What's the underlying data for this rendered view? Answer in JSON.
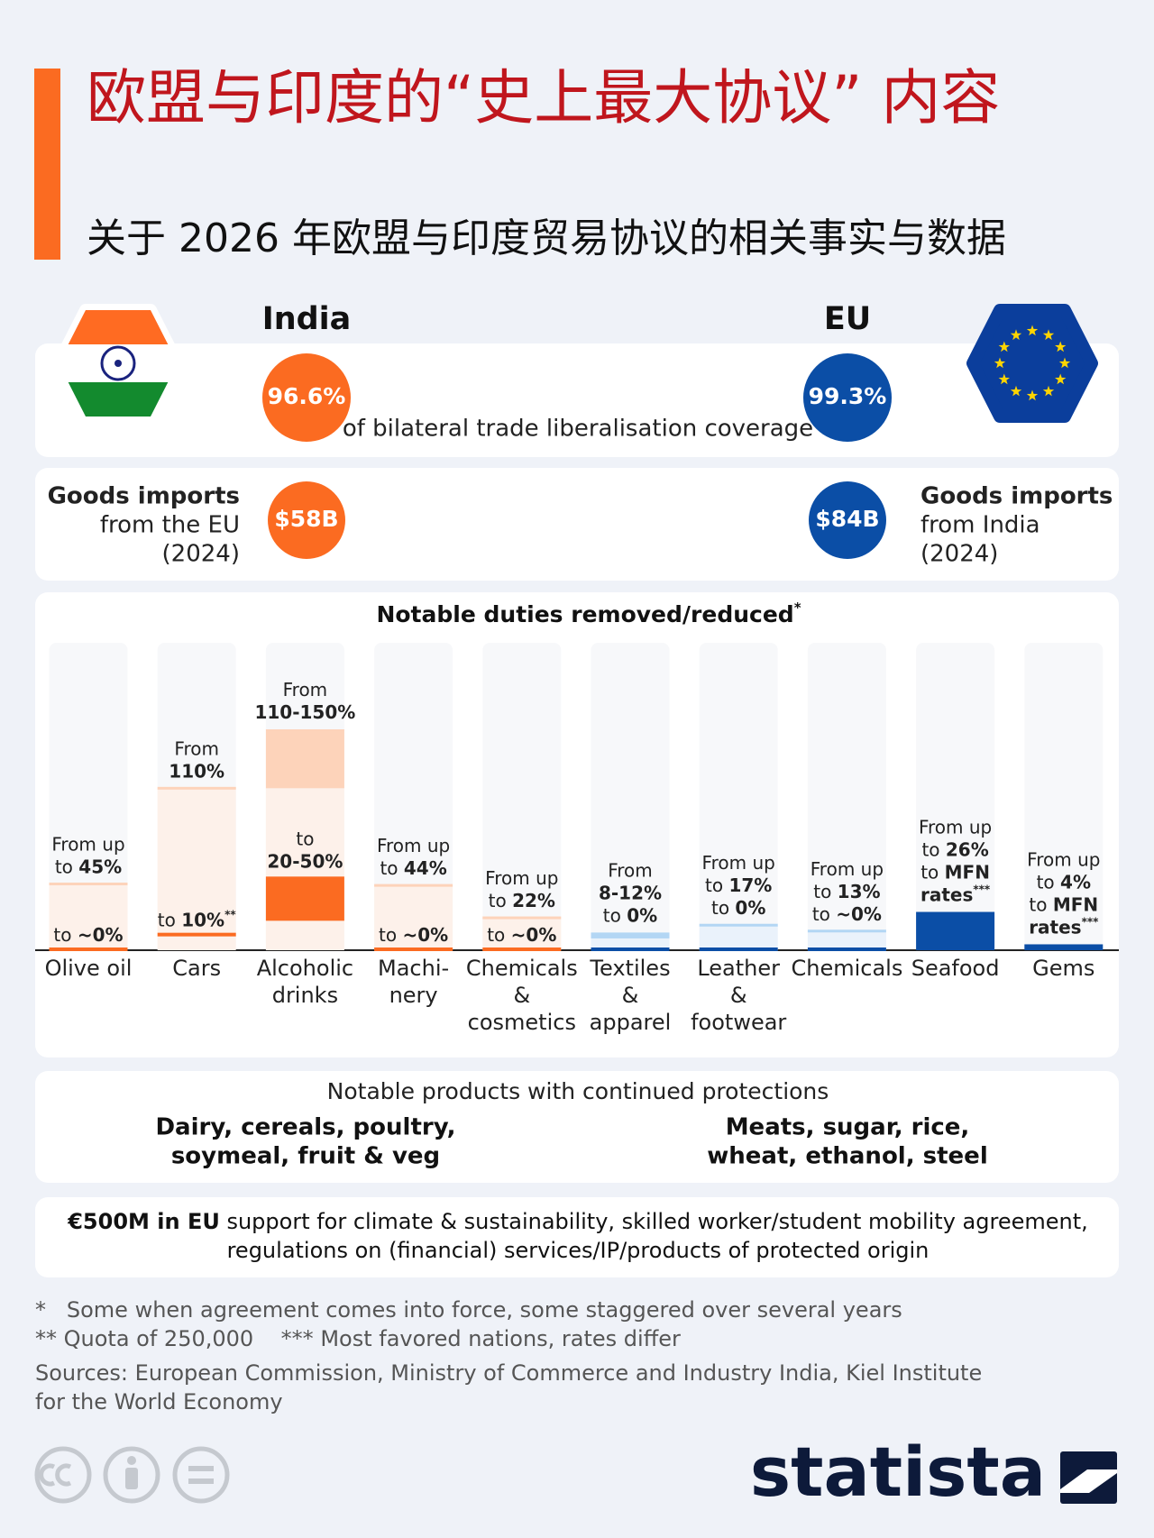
{
  "header": {
    "title": "欧盟与印度的“史上最大协议” 内容",
    "subtitle": "关于 2026 年欧盟与印度贸易协议的相关事实与数据"
  },
  "coverage": {
    "india_label": "India",
    "eu_label": "EU",
    "india_value": "96.6%",
    "eu_value": "99.3%",
    "caption": "of bilateral trade liberalisation coverage"
  },
  "imports": {
    "india": {
      "lines": [
        "Goods imports",
        "from the EU",
        "(2024)"
      ],
      "value": "$58B"
    },
    "eu": {
      "lines": [
        "Goods imports",
        "from India",
        "(2024)"
      ],
      "value": "$84B"
    }
  },
  "duties": {
    "title": [
      {
        "b": "Notable duties removed/reduced"
      },
      {
        "sup": "*"
      }
    ],
    "ylim": [
      0,
      150
    ],
    "colors": {
      "india": [
        "#fdf1ea",
        "#fdd3ba",
        "#fb6b21"
      ],
      "eu": [
        "#eaf2fb",
        "#b3d6f4",
        "#0b4ea6"
      ]
    },
    "items": [
      {
        "side": "india",
        "name": [
          "Olive oil"
        ],
        "from": 45,
        "to": 0,
        "upper": [
          [
            {
              "t": "From up"
            }
          ],
          [
            {
              "t": "to "
            },
            {
              "b": "45%"
            }
          ]
        ],
        "lower": [
          [
            {
              "t": "to "
            },
            {
              "b": "~0%"
            }
          ]
        ]
      },
      {
        "side": "india",
        "name": [
          "Cars"
        ],
        "from": 110,
        "to": 10,
        "upper": [
          [
            {
              "t": "From"
            }
          ],
          [
            {
              "b": "110%"
            }
          ]
        ],
        "lower": [
          [
            {
              "t": "to "
            },
            {
              "b": "10%"
            },
            {
              "sup": "**"
            }
          ]
        ]
      },
      {
        "side": "india",
        "name": [
          "Alcoholic",
          "drinks"
        ],
        "from": [
          110,
          150
        ],
        "to": [
          20,
          50
        ],
        "upper": [
          [
            {
              "t": "From"
            }
          ],
          [
            {
              "b": "110-150%"
            }
          ]
        ],
        "lower": [
          [
            {
              "t": "to"
            }
          ],
          [
            {
              "b": "20-50%"
            }
          ]
        ]
      },
      {
        "side": "india",
        "name": [
          "Machi-",
          "nery"
        ],
        "from": 44,
        "to": 0,
        "upper": [
          [
            {
              "t": "From up"
            }
          ],
          [
            {
              "t": "to "
            },
            {
              "b": "44%"
            }
          ]
        ],
        "lower": [
          [
            {
              "t": "to "
            },
            {
              "b": "~0%"
            }
          ]
        ]
      },
      {
        "side": "india",
        "name": [
          "Chemicals",
          "&",
          "cosmetics"
        ],
        "from": 22,
        "to": 0,
        "upper": [
          [
            {
              "t": "From up"
            }
          ],
          [
            {
              "t": "to "
            },
            {
              "b": "22%"
            }
          ]
        ],
        "lower": [
          [
            {
              "t": "to "
            },
            {
              "b": "~0%"
            }
          ]
        ]
      },
      {
        "side": "eu",
        "name": [
          "Textiles",
          "&",
          "apparel"
        ],
        "from": [
          8,
          12
        ],
        "to": 0,
        "upper": [
          [
            {
              "t": "From"
            }
          ],
          [
            {
              "b": "8-12%"
            }
          ],
          [
            {
              "t": "to "
            },
            {
              "b": "0%"
            }
          ]
        ],
        "lower": []
      },
      {
        "side": "eu",
        "name": [
          "Leather",
          "&",
          "footwear"
        ],
        "from": 17,
        "to": 0,
        "upper": [
          [
            {
              "t": "From up"
            }
          ],
          [
            {
              "t": "to "
            },
            {
              "b": "17%"
            }
          ],
          [
            {
              "t": "to "
            },
            {
              "b": "0%"
            }
          ]
        ],
        "lower": []
      },
      {
        "side": "eu",
        "name": [
          "Chemicals"
        ],
        "from": 13,
        "to": 0,
        "upper": [
          [
            {
              "t": "From up"
            }
          ],
          [
            {
              "t": "to "
            },
            {
              "b": "13%"
            }
          ],
          [
            {
              "t": "to "
            },
            {
              "b": "~0%"
            }
          ]
        ],
        "lower": []
      },
      {
        "side": "eu",
        "name": [
          "Seafood"
        ],
        "from": 26,
        "to": null,
        "upper": [
          [
            {
              "t": "From up"
            }
          ],
          [
            {
              "t": "to "
            },
            {
              "b": "26%"
            }
          ],
          [
            {
              "t": "to "
            },
            {
              "b": "MFN"
            }
          ],
          [
            {
              "b": "rates"
            },
            {
              "sup": "***"
            }
          ]
        ],
        "lower": []
      },
      {
        "side": "eu",
        "name": [
          "Gems"
        ],
        "from": 4,
        "to": null,
        "upper": [
          [
            {
              "t": "From up"
            }
          ],
          [
            {
              "t": "to "
            },
            {
              "b": "4%"
            }
          ],
          [
            {
              "t": "to "
            },
            {
              "b": "MFN"
            }
          ],
          [
            {
              "b": "rates"
            },
            {
              "sup": "***"
            }
          ]
        ],
        "lower": []
      }
    ]
  },
  "protections": {
    "title": "Notable products with continued protections",
    "india": [
      "Dairy, cereals, poultry,",
      "soymeal, fruit & veg"
    ],
    "eu": [
      "Meats, sugar, rice,",
      "wheat, ethanol, steel"
    ]
  },
  "support": [
    [
      {
        "b": "€500M in EU"
      },
      {
        "t": " support for climate & sustainability, skilled worker/student mobility agreement,"
      }
    ],
    [
      {
        "t": "regulations on (financial) services/IP/products of protected origin"
      }
    ]
  ],
  "footnotes": [
    "*   Some when agreement comes into force, some staggered over several years",
    "** Quota of 250,000    *** Most favored nations, rates differ",
    "Sources: European Commission, Ministry of Commerce and Industry India, Kiel Institute",
    "for the World Economy"
  ],
  "logo": "statista"
}
